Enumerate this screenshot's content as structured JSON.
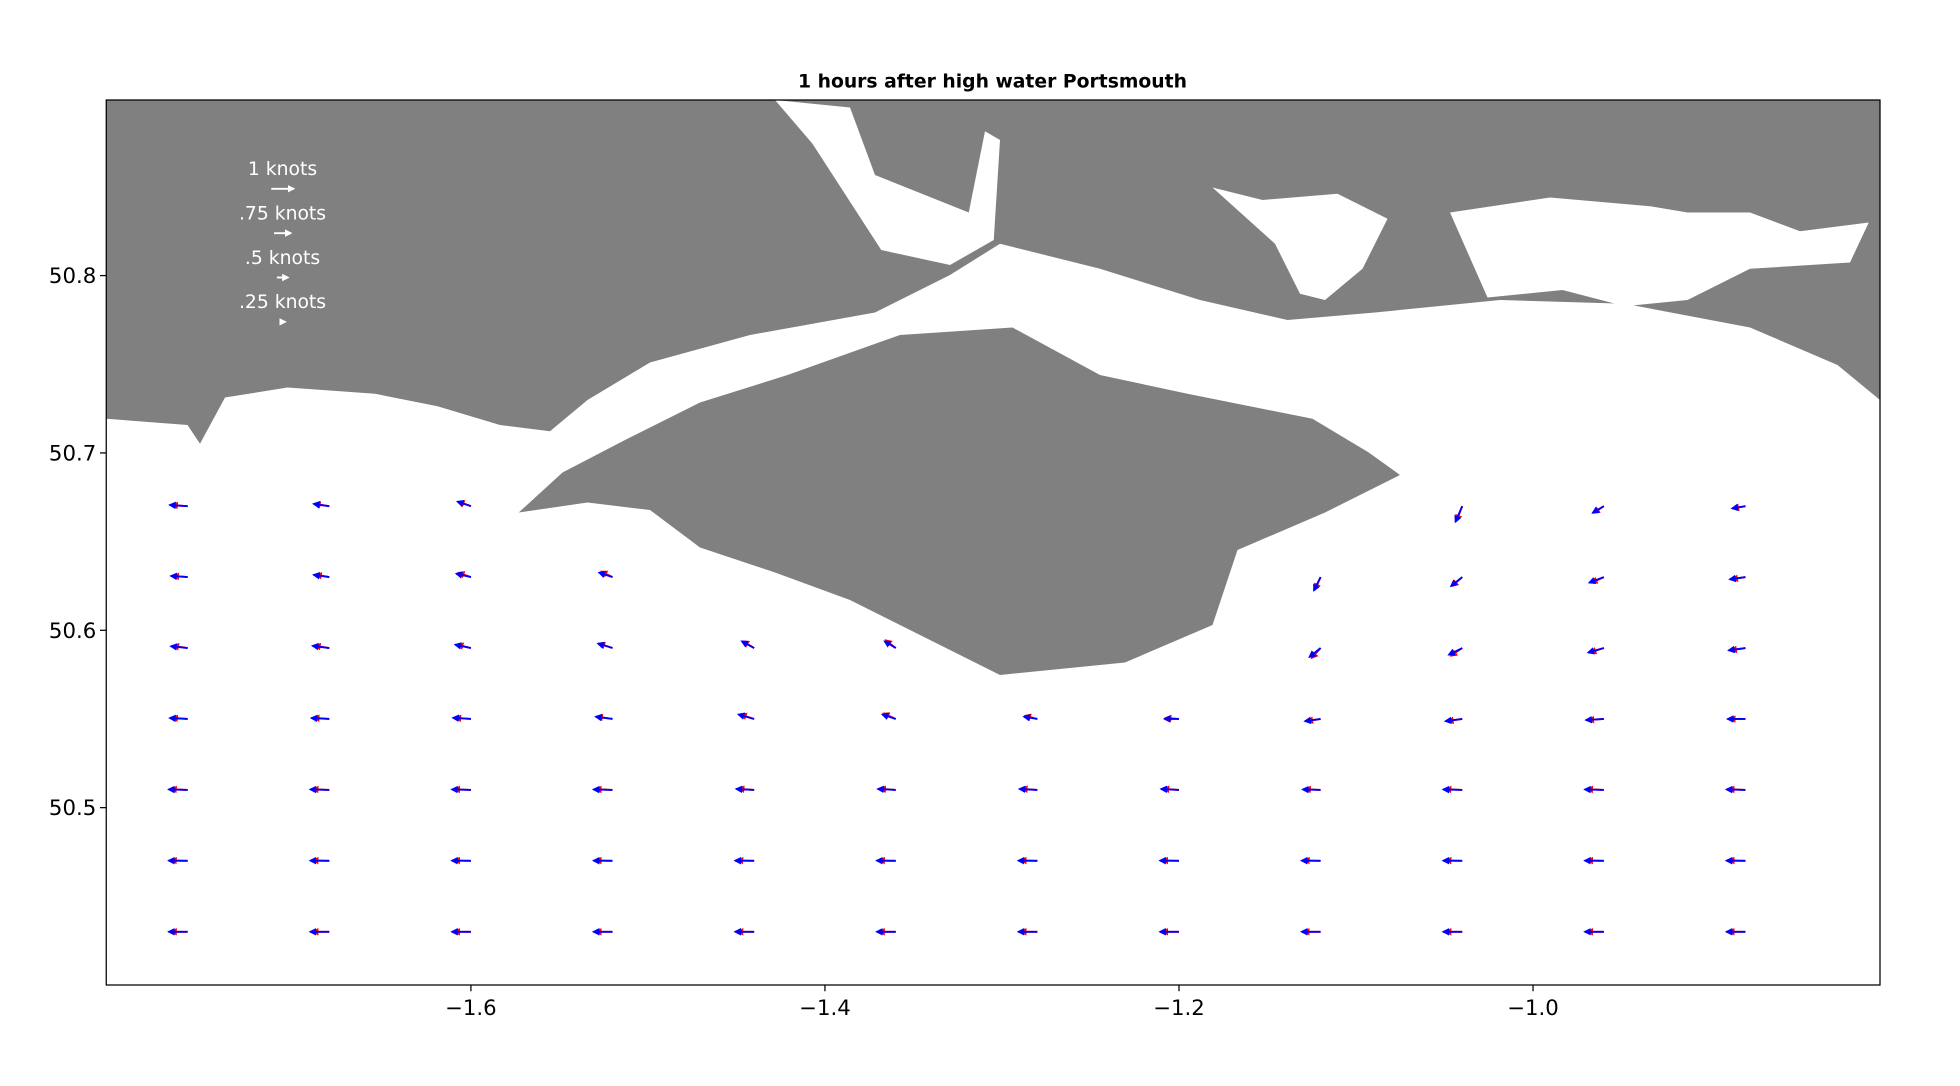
{
  "chart_data": {
    "type": "quiver",
    "title": "1 hours after high water Portsmouth",
    "xlim": [
      -1.806,
      -0.804
    ],
    "ylim": [
      50.4,
      50.899
    ],
    "xticks": [
      {
        "value": -1.6,
        "label": "−1.6"
      },
      {
        "value": -1.4,
        "label": "−1.4"
      },
      {
        "value": -1.2,
        "label": "−1.2"
      },
      {
        "value": -1.0,
        "label": "−1.0"
      }
    ],
    "yticks": [
      50.5,
      50.6,
      50.7,
      50.8
    ],
    "quiver_keys": [
      {
        "value": 1,
        "label": "1 knots"
      },
      {
        "value": 0.75,
        "label": ".75 knots"
      },
      {
        "value": 0.5,
        "label": ".5 knots"
      },
      {
        "value": 0.25,
        "label": ".25 knots"
      }
    ],
    "series": [
      {
        "color": "#ff0000",
        "points": [
          [
            -1.76,
            50.43,
            -0.75,
            0
          ],
          [
            -1.68,
            50.43,
            -0.75,
            0
          ],
          [
            -1.6,
            50.43,
            -0.75,
            0
          ],
          [
            -1.52,
            50.43,
            -0.75,
            0
          ],
          [
            -1.44,
            50.43,
            -0.75,
            0
          ],
          [
            -1.36,
            50.43,
            -0.75,
            0
          ],
          [
            -1.28,
            50.43,
            -0.75,
            0
          ],
          [
            -1.2,
            50.43,
            -0.75,
            0
          ],
          [
            -1.12,
            50.43,
            -0.75,
            0
          ],
          [
            -1.04,
            50.43,
            -0.75,
            0
          ],
          [
            -0.96,
            50.43,
            -0.75,
            0
          ],
          [
            -0.88,
            50.43,
            -0.75,
            0
          ],
          [
            -1.76,
            50.47,
            -0.75,
            0.02
          ],
          [
            -1.68,
            50.47,
            -0.75,
            0.02
          ],
          [
            -1.6,
            50.47,
            -0.75,
            0.02
          ],
          [
            -1.52,
            50.47,
            -0.75,
            0.02
          ],
          [
            -1.44,
            50.47,
            -0.75,
            0.02
          ],
          [
            -1.36,
            50.47,
            -0.75,
            0.02
          ],
          [
            -1.28,
            50.47,
            -0.75,
            0.02
          ],
          [
            -1.2,
            50.47,
            -0.75,
            0.02
          ],
          [
            -1.12,
            50.47,
            -0.75,
            0.02
          ],
          [
            -1.04,
            50.47,
            -0.75,
            0.02
          ],
          [
            -0.96,
            50.47,
            -0.75,
            0.02
          ],
          [
            -0.88,
            50.47,
            -0.75,
            0.02
          ],
          [
            -1.76,
            50.51,
            -0.75,
            0.03
          ],
          [
            -1.68,
            50.51,
            -0.75,
            0.03
          ],
          [
            -1.6,
            50.51,
            -0.75,
            0.03
          ],
          [
            -1.52,
            50.51,
            -0.75,
            0.03
          ],
          [
            -1.44,
            50.51,
            -0.7,
            0.05
          ],
          [
            -1.36,
            50.51,
            -0.7,
            0.05
          ],
          [
            -1.28,
            50.51,
            -0.7,
            0.05
          ],
          [
            -1.2,
            50.51,
            -0.7,
            0.05
          ],
          [
            -1.12,
            50.51,
            -0.7,
            0.03
          ],
          [
            -1.04,
            50.51,
            -0.75,
            0.03
          ],
          [
            -0.96,
            50.51,
            -0.75,
            0.03
          ],
          [
            -0.88,
            50.51,
            -0.75,
            0.03
          ],
          [
            -1.76,
            50.55,
            -0.7,
            0.05
          ],
          [
            -1.68,
            50.55,
            -0.7,
            0.05
          ],
          [
            -1.6,
            50.55,
            -0.7,
            0.05
          ],
          [
            -1.52,
            50.55,
            -0.7,
            0.1
          ],
          [
            -1.44,
            50.55,
            -0.6,
            0.2
          ],
          [
            -1.36,
            50.55,
            -0.55,
            0.25
          ],
          [
            -1.28,
            50.55,
            -0.55,
            0.15
          ],
          [
            -1.2,
            50.55,
            -0.6,
            0.05
          ],
          [
            -1.12,
            50.55,
            -0.6,
            -0.1
          ],
          [
            -1.04,
            50.55,
            -0.65,
            -0.1
          ],
          [
            -0.96,
            50.55,
            -0.7,
            -0.05
          ],
          [
            -0.88,
            50.55,
            -0.7,
            0
          ],
          [
            -1.76,
            50.59,
            -0.65,
            0.1
          ],
          [
            -1.68,
            50.59,
            -0.65,
            0.1
          ],
          [
            -1.6,
            50.59,
            -0.6,
            0.15
          ],
          [
            -1.52,
            50.59,
            -0.6,
            0.2
          ],
          [
            -1.44,
            50.59,
            -0.5,
            0.3
          ],
          [
            -1.36,
            50.59,
            -0.45,
            0.35
          ],
          [
            -1.12,
            50.59,
            -0.4,
            -0.45
          ],
          [
            -1.04,
            50.59,
            -0.5,
            -0.35
          ],
          [
            -0.96,
            50.59,
            -0.6,
            -0.2
          ],
          [
            -0.88,
            50.59,
            -0.65,
            -0.1
          ],
          [
            -1.76,
            50.63,
            -0.65,
            0.05
          ],
          [
            -1.68,
            50.63,
            -0.6,
            0.1
          ],
          [
            -1.6,
            50.63,
            -0.55,
            0.2
          ],
          [
            -1.52,
            50.63,
            -0.5,
            0.25
          ],
          [
            -1.12,
            50.63,
            -0.25,
            -0.55
          ],
          [
            -1.04,
            50.63,
            -0.45,
            -0.4
          ],
          [
            -0.96,
            50.63,
            -0.55,
            -0.25
          ],
          [
            -0.88,
            50.63,
            -0.6,
            -0.1
          ],
          [
            -1.76,
            50.67,
            -0.7,
            0.05
          ],
          [
            -1.68,
            50.67,
            -0.65,
            0.1
          ],
          [
            -1.6,
            50.67,
            -0.55,
            0.2
          ],
          [
            -1.04,
            50.67,
            -0.25,
            -0.65
          ],
          [
            -0.96,
            50.67,
            -0.45,
            -0.3
          ],
          [
            -0.88,
            50.67,
            -0.55,
            -0.1
          ]
        ]
      },
      {
        "color": "#0000ff",
        "points": [
          [
            -1.76,
            50.43,
            -0.85,
            0
          ],
          [
            -1.68,
            50.43,
            -0.85,
            0
          ],
          [
            -1.6,
            50.43,
            -0.85,
            0
          ],
          [
            -1.52,
            50.43,
            -0.85,
            0
          ],
          [
            -1.44,
            50.43,
            -0.85,
            0
          ],
          [
            -1.36,
            50.43,
            -0.85,
            0
          ],
          [
            -1.28,
            50.43,
            -0.85,
            0
          ],
          [
            -1.2,
            50.43,
            -0.85,
            0
          ],
          [
            -1.12,
            50.43,
            -0.85,
            0
          ],
          [
            -1.04,
            50.43,
            -0.85,
            0
          ],
          [
            -0.96,
            50.43,
            -0.85,
            0
          ],
          [
            -0.88,
            50.43,
            -0.85,
            0
          ],
          [
            -1.76,
            50.47,
            -0.85,
            0.01
          ],
          [
            -1.68,
            50.47,
            -0.85,
            0.01
          ],
          [
            -1.6,
            50.47,
            -0.85,
            0.01
          ],
          [
            -1.52,
            50.47,
            -0.85,
            0.01
          ],
          [
            -1.44,
            50.47,
            -0.85,
            0.01
          ],
          [
            -1.36,
            50.47,
            -0.85,
            0.01
          ],
          [
            -1.28,
            50.47,
            -0.85,
            0.01
          ],
          [
            -1.2,
            50.47,
            -0.85,
            0.01
          ],
          [
            -1.12,
            50.47,
            -0.85,
            0.01
          ],
          [
            -1.04,
            50.47,
            -0.85,
            0.01
          ],
          [
            -0.96,
            50.47,
            -0.85,
            0.01
          ],
          [
            -0.88,
            50.47,
            -0.85,
            0.01
          ],
          [
            -1.76,
            50.51,
            -0.85,
            0.02
          ],
          [
            -1.68,
            50.51,
            -0.85,
            0.02
          ],
          [
            -1.6,
            50.51,
            -0.85,
            0.02
          ],
          [
            -1.52,
            50.51,
            -0.85,
            0.02
          ],
          [
            -1.44,
            50.51,
            -0.8,
            0.04
          ],
          [
            -1.36,
            50.51,
            -0.8,
            0.04
          ],
          [
            -1.28,
            50.51,
            -0.8,
            0.04
          ],
          [
            -1.2,
            50.51,
            -0.8,
            0.04
          ],
          [
            -1.12,
            50.51,
            -0.8,
            0.02
          ],
          [
            -1.04,
            50.51,
            -0.85,
            0.02
          ],
          [
            -0.96,
            50.51,
            -0.85,
            0.02
          ],
          [
            -0.88,
            50.51,
            -0.85,
            0.02
          ],
          [
            -1.76,
            50.55,
            -0.8,
            0.04
          ],
          [
            -1.68,
            50.55,
            -0.8,
            0.04
          ],
          [
            -1.6,
            50.55,
            -0.8,
            0.05
          ],
          [
            -1.52,
            50.55,
            -0.75,
            0.1
          ],
          [
            -1.44,
            50.55,
            -0.7,
            0.2
          ],
          [
            -1.36,
            50.55,
            -0.6,
            0.2
          ],
          [
            -1.28,
            50.55,
            -0.6,
            0.1
          ],
          [
            -1.2,
            50.55,
            -0.65,
            0
          ],
          [
            -1.12,
            50.55,
            -0.7,
            -0.1
          ],
          [
            -1.04,
            50.55,
            -0.75,
            -0.1
          ],
          [
            -0.96,
            50.55,
            -0.8,
            -0.05
          ],
          [
            -0.88,
            50.55,
            -0.8,
            0
          ],
          [
            -1.76,
            50.59,
            -0.75,
            0.08
          ],
          [
            -1.68,
            50.59,
            -0.75,
            0.1
          ],
          [
            -1.6,
            50.59,
            -0.7,
            0.15
          ],
          [
            -1.52,
            50.59,
            -0.65,
            0.2
          ],
          [
            -1.44,
            50.59,
            -0.55,
            0.3
          ],
          [
            -1.36,
            50.59,
            -0.5,
            0.3
          ],
          [
            -1.12,
            50.59,
            -0.5,
            -0.4
          ],
          [
            -1.04,
            50.59,
            -0.6,
            -0.3
          ],
          [
            -0.96,
            50.59,
            -0.7,
            -0.2
          ],
          [
            -0.88,
            50.59,
            -0.75,
            -0.1
          ],
          [
            -1.76,
            50.63,
            -0.75,
            0.05
          ],
          [
            -1.68,
            50.63,
            -0.7,
            0.1
          ],
          [
            -1.6,
            50.63,
            -0.65,
            0.15
          ],
          [
            -1.52,
            50.63,
            -0.6,
            0.2
          ],
          [
            -1.12,
            50.63,
            -0.3,
            -0.6
          ],
          [
            -1.04,
            50.63,
            -0.5,
            -0.4
          ],
          [
            -0.96,
            50.63,
            -0.65,
            -0.25
          ],
          [
            -0.88,
            50.63,
            -0.7,
            -0.1
          ],
          [
            -1.76,
            50.67,
            -0.8,
            0.05
          ],
          [
            -1.68,
            50.67,
            -0.7,
            0.1
          ],
          [
            -1.6,
            50.67,
            -0.6,
            0.2
          ],
          [
            -1.04,
            50.67,
            -0.3,
            -0.7
          ],
          [
            -0.96,
            50.67,
            -0.5,
            -0.3
          ],
          [
            -0.88,
            50.67,
            -0.6,
            -0.1
          ]
        ]
      }
    ]
  }
}
